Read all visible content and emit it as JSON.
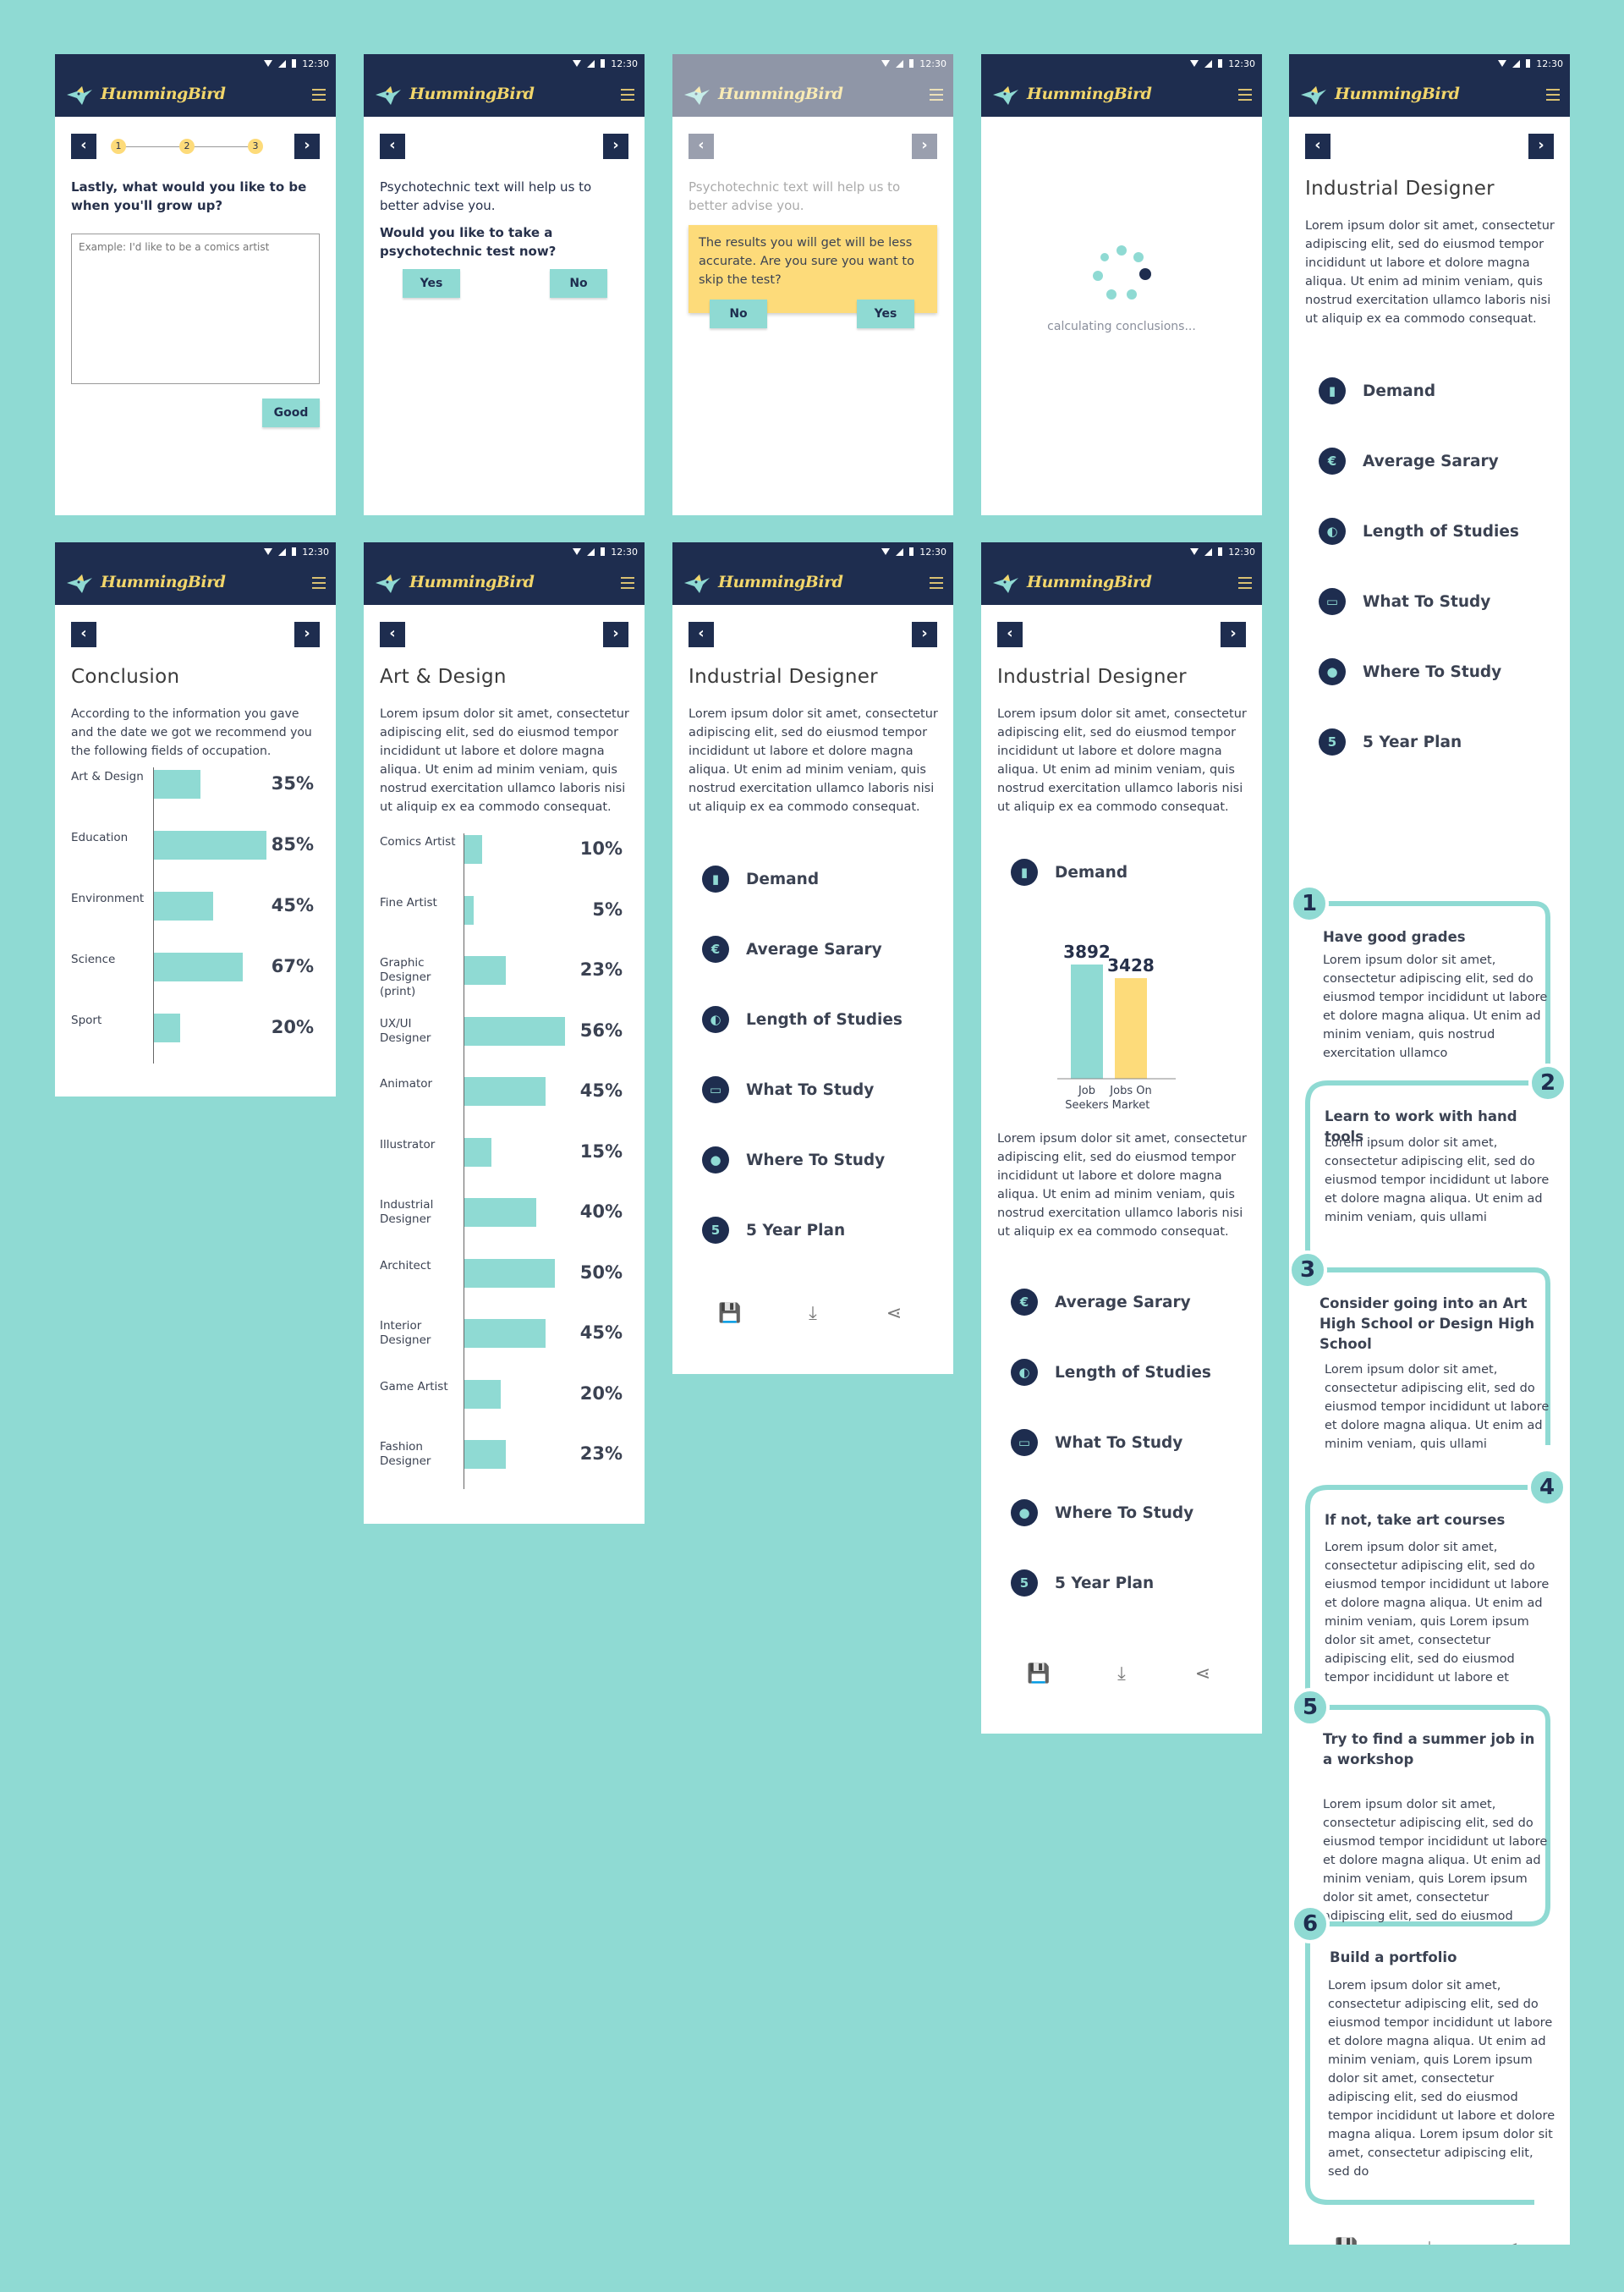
{
  "status_time": "12:30",
  "brand": "HummingBird",
  "lorem_short": "Lorem ipsum dolor sit amet, consectetur adipiscing elit, sed do eiusmod tempor incididunt ut labore et dolore magna aliqua. Ut enim ad minim veniam, quis nostrud exercitation ullamco laboris nisi ut aliquip ex ea commodo consequat.",
  "lorem_ind": "Lorem ipsum dolor sit amet, consectetur adipiscing elit, sed do eiusmod tempor incididunt ut labore et dolore magna aliqua. Ut enim ad minim veniam, quis nostrud exercitation ullamco laboris nisi ut aliquip ex ea commodo consequat.",
  "screen1": {
    "steps": [
      "1",
      "2",
      "3"
    ],
    "question": "Lastly, what would you like to be when you'll grow up?",
    "placeholder": "Example: I'd like to be a comics artist",
    "good": "Good"
  },
  "screen2": {
    "intro": "Psychotechnic text will help us to better advise you.",
    "question": "Would you like to take a psychotechnic test now?",
    "yes": "Yes",
    "no": "No"
  },
  "screen3": {
    "intro": "Psychotechnic text will help us to better advise you.",
    "warning": "The results you will get will be less accurate. Are you sure you want to skip the test?",
    "no": "No",
    "yes": "Yes"
  },
  "screen4": {
    "loading": "calculating conclusions..."
  },
  "menu": {
    "demand": "Demand",
    "salary": "Average Sarary",
    "length": "Length of Studies",
    "what": "What To Study",
    "where": "Where To Study",
    "plan": "5 Year Plan"
  },
  "icons": {
    "demand": "bar-chart-icon",
    "salary": "euro-icon",
    "length": "moon-icon",
    "what": "graduation-cap-icon",
    "where": "location-pin-icon",
    "plan": "five-icon"
  },
  "conclusion": {
    "title": "Conclusion",
    "text": "According to the information you gave and the date we got we recommend you the following fields of occupation.",
    "items": [
      {
        "label": "Art & Design",
        "pct": "35%",
        "value": 35
      },
      {
        "label": "Education",
        "pct": "85%",
        "value": 85
      },
      {
        "label": "Environment",
        "pct": "45%",
        "value": 45
      },
      {
        "label": "Science",
        "pct": "67%",
        "value": 67
      },
      {
        "label": "Sport",
        "pct": "20%",
        "value": 20
      }
    ]
  },
  "art_design": {
    "title": "Art & Design",
    "items": [
      {
        "label": "Comics Artist",
        "pct": "10%",
        "value": 10
      },
      {
        "label": "Fine Artist",
        "pct": "5%",
        "value": 5
      },
      {
        "label": "Graphic Designer (print)",
        "pct": "23%",
        "value": 23
      },
      {
        "label": "UX/UI Designer",
        "pct": "56%",
        "value": 56
      },
      {
        "label": "Animator",
        "pct": "45%",
        "value": 45
      },
      {
        "label": "Illustrator",
        "pct": "15%",
        "value": 15
      },
      {
        "label": "Industrial Designer",
        "pct": "40%",
        "value": 40
      },
      {
        "label": "Architect",
        "pct": "50%",
        "value": 50
      },
      {
        "label": "Interior Designer",
        "pct": "45%",
        "value": 45
      },
      {
        "label": "Game Artist",
        "pct": "20%",
        "value": 20
      },
      {
        "label": "Fashion Designer",
        "pct": "23%",
        "value": 23
      }
    ]
  },
  "industrial": {
    "title": "Industrial Designer"
  },
  "demand_chart": {
    "chart_data": {
      "type": "bar",
      "categories": [
        "Job Seekers",
        "Jobs On Market"
      ],
      "values": [
        3892,
        3428
      ],
      "colors": [
        "#8fdad3",
        "#fddb7a"
      ]
    }
  },
  "plan": {
    "steps": [
      {
        "n": "1",
        "title": "Have good grades",
        "body": "Lorem ipsum dolor sit amet, consectetur adipiscing elit, sed do eiusmod tempor incididunt ut labore et dolore magna aliqua. Ut enim ad minim veniam, quis nostrud exercitation ullamco"
      },
      {
        "n": "2",
        "title": "Learn to work with hand tools",
        "body": "Lorem ipsum dolor sit amet, consectetur adipiscing elit, sed do eiusmod tempor incididunt ut labore et dolore magna aliqua. Ut enim ad minim veniam, quis ullami"
      },
      {
        "n": "3",
        "title": "Consider going into an Art High School or Design High School",
        "body": "Lorem ipsum dolor sit amet, consectetur adipiscing elit, sed do eiusmod tempor incididunt ut labore et dolore magna aliqua. Ut enim ad minim veniam, quis ullami"
      },
      {
        "n": "4",
        "title": "If not, take art courses",
        "body": "Lorem ipsum dolor sit amet, consectetur adipiscing elit, sed do eiusmod tempor incididunt ut labore et dolore magna aliqua. Ut enim ad minim veniam, quis Lorem ipsum dolor sit amet, consectetur adipiscing elit, sed do eiusmod tempor incididunt ut labore et"
      },
      {
        "n": "5",
        "title": "Try to find a summer job in a workshop",
        "body": "Lorem ipsum dolor sit amet, consectetur adipiscing elit, sed do eiusmod tempor incididunt ut labore et dolore magna aliqua. Ut enim ad minim veniam, quis Lorem ipsum dolor sit amet, consectetur adipiscing elit, sed do eiusmod"
      },
      {
        "n": "6",
        "title": "Build a portfolio",
        "body": "Lorem ipsum dolor sit amet, consectetur adipiscing elit, sed do eiusmod tempor incididunt ut labore et dolore magna aliqua. Ut enim ad minim veniam, quis Lorem ipsum dolor sit amet, consectetur adipiscing elit, sed do eiusmod tempor incididunt ut labore et dolore magna aliqua. Lorem ipsum dolor sit amet, consectetur adipiscing elit, sed do"
      }
    ]
  },
  "colors": {
    "navy": "#1e2d4f",
    "teal": "#8fdad3",
    "yellow": "#fddb7a"
  }
}
